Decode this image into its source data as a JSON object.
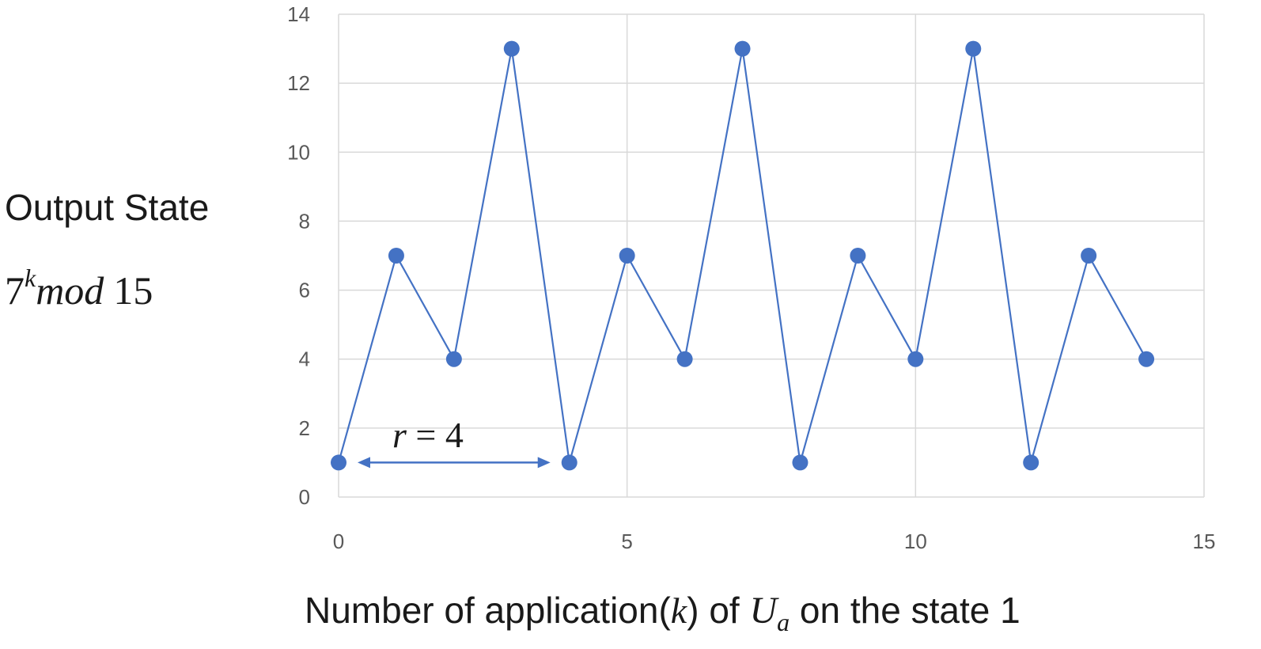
{
  "chart_data": {
    "type": "line",
    "x": [
      0,
      1,
      2,
      3,
      4,
      5,
      6,
      7,
      8,
      9,
      10,
      11,
      12,
      13,
      14
    ],
    "series": [
      {
        "values": [
          1,
          7,
          4,
          13,
          1,
          7,
          4,
          13,
          1,
          7,
          4,
          13,
          1,
          7,
          4
        ]
      }
    ],
    "xlim": [
      0,
      15
    ],
    "ylim": [
      0,
      14
    ],
    "xticks": [
      0,
      5,
      10,
      15
    ],
    "yticks": [
      0,
      2,
      4,
      6,
      8,
      10,
      12,
      14
    ],
    "grid": true,
    "ylabel_line1": "Output State",
    "ylabel_math": {
      "base": "7",
      "exp": "k",
      "word": "mod",
      "num": "15"
    },
    "xlabel": {
      "prefix": "Number of application(",
      "var": "k",
      "mid": ") of ",
      "op": "U",
      "sub": "a",
      "suffix": " on the state 1"
    },
    "annotation": {
      "lhs": "r",
      "eq": " = ",
      "rhs": "4",
      "from_x": 0,
      "to_x": 4
    },
    "colors": {
      "series": "#4472C4",
      "grid": "#d9d9d9",
      "tick": "#595959"
    }
  }
}
